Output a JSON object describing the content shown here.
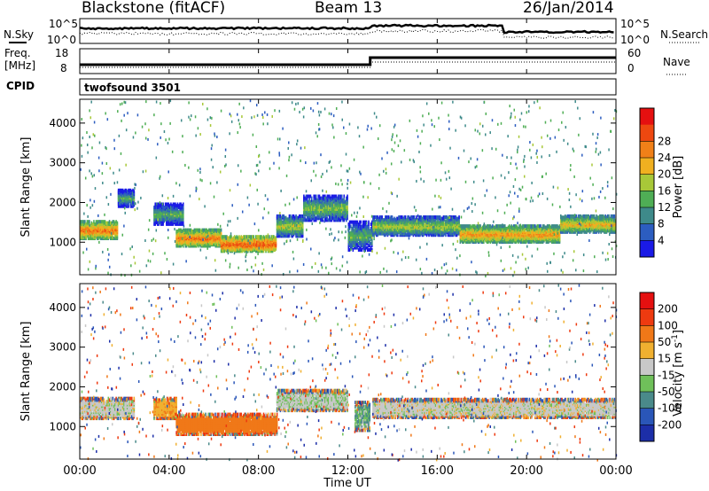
{
  "header": {
    "station": "Blackstone (fitACF)",
    "beam": "Beam 13",
    "date": "26/Jan/2014"
  },
  "noise_panel": {
    "left_label": "N.Sky",
    "right_label": "N.Search",
    "tick_top": "10^5",
    "tick_bottom": "10^0"
  },
  "freq_panel": {
    "left_label_1": "Freq.",
    "left_label_2": "[MHz]",
    "tick_top": "18",
    "tick_bottom": "8",
    "right_label": "Nave",
    "right_tick_top": "60",
    "right_tick_bottom": "0"
  },
  "cpid": {
    "label": "CPID",
    "value": "twofsound 3501"
  },
  "x_axis": {
    "label": "Time UT",
    "ticks": [
      "00:00",
      "04:00",
      "08:00",
      "12:00",
      "16:00",
      "20:00",
      "00:00"
    ]
  },
  "y_axis": {
    "label": "Slant Range [km]",
    "ticks": [
      "1000",
      "2000",
      "3000",
      "4000"
    ]
  },
  "power_scale": {
    "label": "Power [dB]",
    "ticks": [
      "4",
      "8",
      "12",
      "16",
      "20",
      "24",
      "28"
    ],
    "colors": [
      "#1a1ae6",
      "#2c5dc0",
      "#3e8a8a",
      "#4fae55",
      "#a8c838",
      "#f0b020",
      "#f08018",
      "#ee4810",
      "#e51010"
    ]
  },
  "velocity_scale": {
    "label_1": "Velocity [m s",
    "label_sup": "-1",
    "label_2": "]",
    "ticks": [
      "200",
      "100",
      "50",
      "15",
      "-15",
      "-50",
      "-100",
      "-200"
    ],
    "colors": [
      "#1c2ea8",
      "#2a56b8",
      "#4a8a8a",
      "#6fc05a",
      "#c8c8c8",
      "#f0b030",
      "#f07818",
      "#ee3a10",
      "#e51010"
    ]
  },
  "chart_data": [
    {
      "type": "heatmap",
      "title": "Power",
      "xlabel": "Time UT",
      "ylabel": "Slant Range [km]",
      "xlim": [
        "00:00",
        "24:00"
      ],
      "ylim": [
        180,
        4600
      ],
      "colorbar": {
        "label": "Power [dB]",
        "ticks": [
          4,
          8,
          12,
          16,
          20,
          24,
          28
        ]
      },
      "bands": [
        {
          "t0": 0.0,
          "t1": 1.7,
          "r_center": 1350,
          "r_width": 420,
          "level": 24
        },
        {
          "t0": 1.7,
          "t1": 2.4,
          "r_center": 2150,
          "r_width": 400,
          "level": 12
        },
        {
          "t0": 3.3,
          "t1": 4.6,
          "r_center": 1750,
          "r_width": 500,
          "level": 12
        },
        {
          "t0": 4.3,
          "t1": 6.3,
          "r_center": 1150,
          "r_width": 400,
          "level": 24
        },
        {
          "t0": 6.3,
          "t1": 8.8,
          "r_center": 1000,
          "r_width": 360,
          "level": 26
        },
        {
          "t0": 8.8,
          "t1": 10.0,
          "r_center": 1450,
          "r_width": 500,
          "level": 16
        },
        {
          "t0": 10.0,
          "t1": 12.0,
          "r_center": 1900,
          "r_width": 600,
          "level": 14
        },
        {
          "t0": 12.0,
          "t1": 13.1,
          "r_center": 1200,
          "r_width": 700,
          "level": 12
        },
        {
          "t0": 13.1,
          "t1": 17.0,
          "r_center": 1450,
          "r_width": 450,
          "level": 16
        },
        {
          "t0": 17.0,
          "t1": 21.5,
          "r_center": 1250,
          "r_width": 400,
          "level": 22
        },
        {
          "t0": 21.5,
          "t1": 24.0,
          "r_center": 1500,
          "r_width": 400,
          "level": 20
        }
      ]
    },
    {
      "type": "heatmap",
      "title": "Velocity",
      "xlabel": "Time UT",
      "ylabel": "Slant Range [km]",
      "xlim": [
        "00:00",
        "24:00"
      ],
      "ylim": [
        180,
        4600
      ],
      "colorbar": {
        "label": "Velocity [m s-1]",
        "ticks": [
          200,
          100,
          50,
          15,
          -15,
          -50,
          -100,
          -200
        ]
      },
      "bands": [
        {
          "t0": 0.0,
          "t1": 2.4,
          "r_center": 1500,
          "r_width": 500,
          "level": 0
        },
        {
          "t0": 3.3,
          "t1": 4.3,
          "r_center": 1500,
          "r_width": 500,
          "level": -40
        },
        {
          "t0": 4.3,
          "t1": 8.8,
          "r_center": 1100,
          "r_width": 500,
          "level": -70
        },
        {
          "t0": 8.8,
          "t1": 12.0,
          "r_center": 1700,
          "r_width": 500,
          "level": 10
        },
        {
          "t0": 12.3,
          "t1": 13.0,
          "r_center": 1300,
          "r_width": 700,
          "level": 30
        },
        {
          "t0": 13.1,
          "t1": 24.0,
          "r_center": 1500,
          "r_width": 450,
          "level": 0
        }
      ]
    }
  ]
}
